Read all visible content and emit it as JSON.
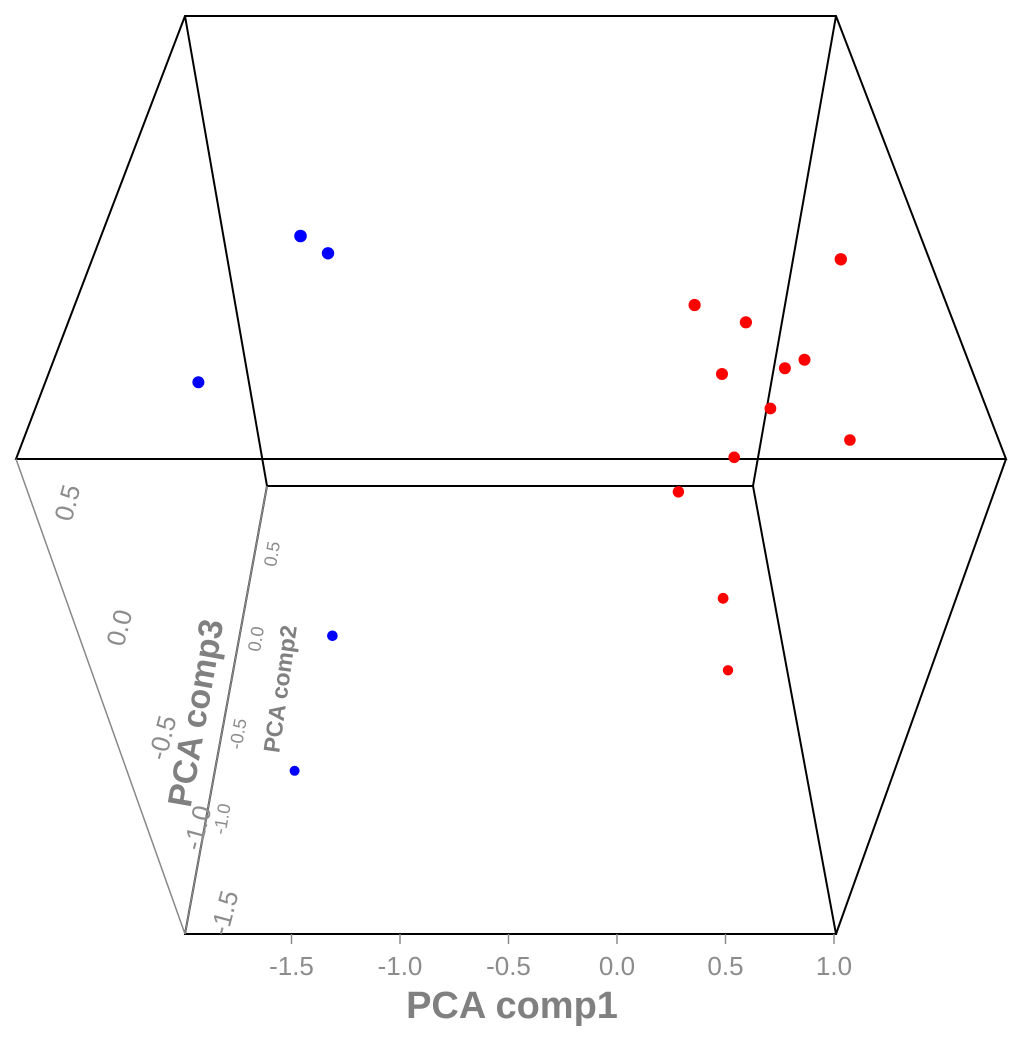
{
  "chart_data": {
    "type": "scatter",
    "title": "",
    "projection": "3d",
    "axes": {
      "x": {
        "label": "PCA comp1",
        "ticks": [
          "-1.5",
          "-1.0",
          "-0.5",
          "0.0",
          "0.5",
          "1.0"
        ],
        "range": [
          -2.0,
          1.0
        ]
      },
      "y": {
        "label": "PCA comp2",
        "ticks": [
          "-1.0",
          "-0.5",
          "0.0",
          "0.5"
        ]
      },
      "z": {
        "label": "PCA comp3",
        "ticks": [
          "-1.5",
          "-1.0",
          "-0.5",
          "0.0",
          "0.5"
        ]
      }
    },
    "grid": false,
    "legend": "none",
    "series": [
      {
        "color": "#0000ff",
        "points": [
          {
            "x": -1.5,
            "y": 0.6,
            "z": 0.8
          },
          {
            "x": -1.37,
            "y": 0.55,
            "z": 0.75
          },
          {
            "x": -1.95,
            "y": 0.3,
            "z": 0.35
          },
          {
            "x": -1.27,
            "y": -0.6,
            "z": -0.35
          },
          {
            "x": -1.42,
            "y": -0.95,
            "z": -0.75
          }
        ]
      },
      {
        "color": "#ff0000",
        "points": [
          {
            "x": 1.0,
            "y": 0.45,
            "z": 0.75
          },
          {
            "x": 0.33,
            "y": 0.4,
            "z": 0.6
          },
          {
            "x": 0.57,
            "y": 0.35,
            "z": 0.55
          },
          {
            "x": 0.85,
            "y": 0.2,
            "z": 0.45
          },
          {
            "x": 0.76,
            "y": 0.2,
            "z": 0.42
          },
          {
            "x": 0.47,
            "y": 0.2,
            "z": 0.4
          },
          {
            "x": 0.7,
            "y": 0.1,
            "z": 0.3
          },
          {
            "x": 1.07,
            "y": 0.05,
            "z": 0.2
          },
          {
            "x": 0.54,
            "y": 0.0,
            "z": 0.15
          },
          {
            "x": 0.29,
            "y": -0.1,
            "z": 0.05
          },
          {
            "x": 0.52,
            "y": -0.45,
            "z": -0.25
          },
          {
            "x": 0.56,
            "y": -0.7,
            "z": -0.45
          }
        ]
      }
    ]
  }
}
